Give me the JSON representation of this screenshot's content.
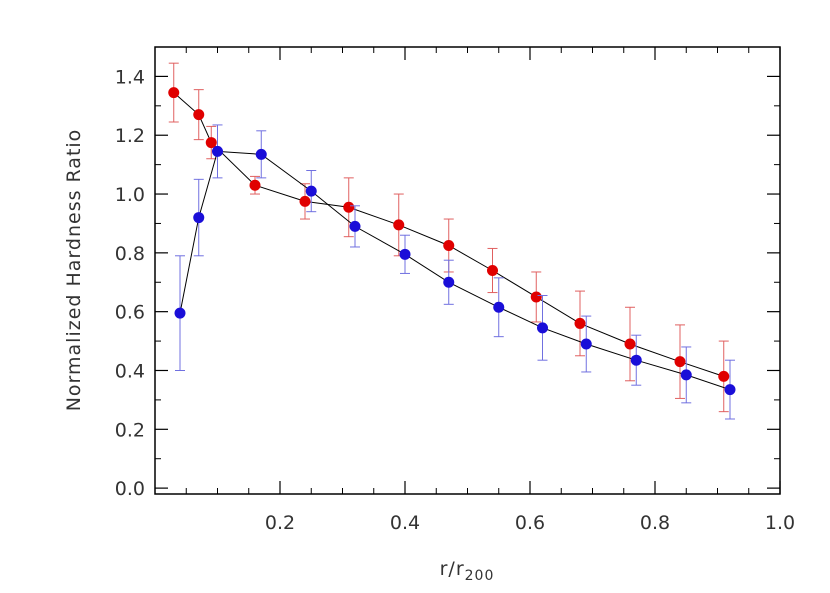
{
  "chart_data": {
    "type": "scatter",
    "title": "",
    "xlabel": "r/r",
    "xlabel_subscript": "200",
    "ylabel": "Normalized Hardness Ratio",
    "xlim": [
      0.0,
      1.0
    ],
    "ylim": [
      -0.02,
      1.5
    ],
    "x_ticks": [
      0.2,
      0.4,
      0.6,
      0.8,
      1.0
    ],
    "x_tick_labels": [
      "0.2",
      "0.4",
      "0.6",
      "0.8",
      "1.0"
    ],
    "y_ticks": [
      0.0,
      0.2,
      0.4,
      0.6,
      0.8,
      1.0,
      1.2,
      1.4
    ],
    "y_tick_labels": [
      "0.0",
      "0.2",
      "0.4",
      "0.6",
      "0.8",
      "1.0",
      "1.2",
      "1.4"
    ],
    "grid": false,
    "legend": "none",
    "series": [
      {
        "color": "#e00000",
        "errorbar_color": "#e06060",
        "x": [
          0.03,
          0.07,
          0.09,
          0.16,
          0.24,
          0.31,
          0.39,
          0.47,
          0.54,
          0.61,
          0.68,
          0.76,
          0.84,
          0.91
        ],
        "y": [
          1.345,
          1.27,
          1.175,
          1.03,
          0.975,
          0.955,
          0.895,
          0.825,
          0.74,
          0.65,
          0.56,
          0.49,
          0.43,
          0.38
        ],
        "err": [
          0.1,
          0.085,
          0.055,
          0.03,
          0.06,
          0.1,
          0.105,
          0.09,
          0.075,
          0.085,
          0.11,
          0.125,
          0.125,
          0.12
        ]
      },
      {
        "color": "#1a0ed8",
        "errorbar_color": "#7070e0",
        "x": [
          0.04,
          0.07,
          0.1,
          0.17,
          0.25,
          0.32,
          0.4,
          0.47,
          0.55,
          0.62,
          0.69,
          0.77,
          0.85,
          0.92
        ],
        "y": [
          0.595,
          0.92,
          1.145,
          1.135,
          1.01,
          0.89,
          0.795,
          0.7,
          0.615,
          0.545,
          0.49,
          0.435,
          0.385,
          0.335
        ],
        "err": [
          0.195,
          0.13,
          0.09,
          0.08,
          0.07,
          0.07,
          0.065,
          0.075,
          0.1,
          0.11,
          0.095,
          0.085,
          0.095,
          0.1
        ]
      }
    ]
  }
}
